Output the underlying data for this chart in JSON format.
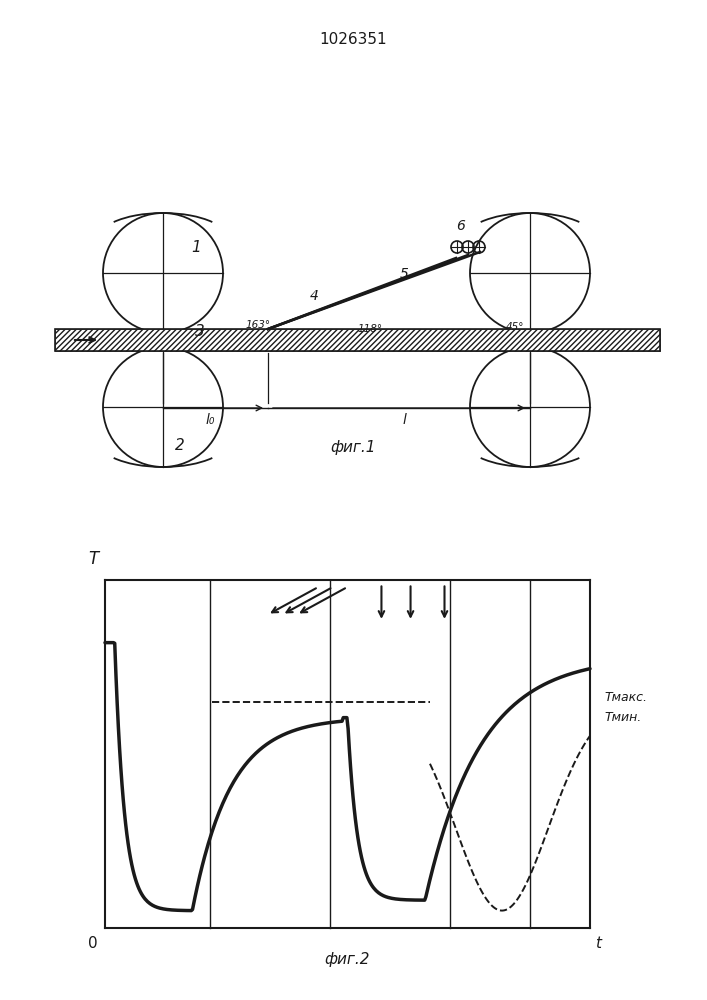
{
  "title": "1026351",
  "fig1_caption": "фиг.1",
  "fig2_caption": "фиг.2",
  "line_color": "#1a1a1a",
  "label_1": "1",
  "label_2": "2",
  "label_3": "3",
  "label_4": "4",
  "label_5": "5",
  "label_6": "6",
  "label_l0": "l₀",
  "label_l": "l",
  "angle_163": "163°",
  "angle_118": "118°",
  "angle_45": "45°",
  "t_max_label": "Tмакс.",
  "t_min_label": "Tмин.",
  "fig2_T": "T",
  "fig2_0": "0",
  "fig2_t": "t"
}
